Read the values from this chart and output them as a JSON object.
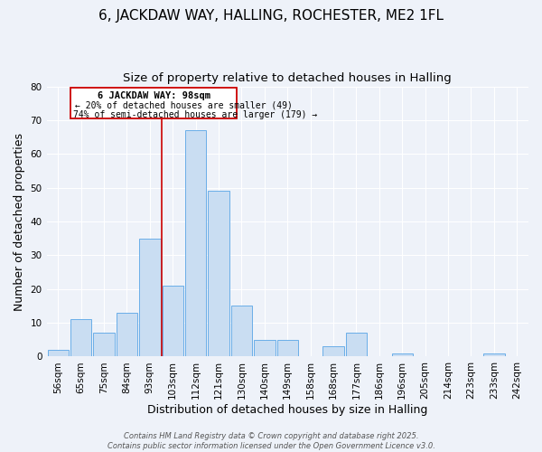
{
  "title": "6, JACKDAW WAY, HALLING, ROCHESTER, ME2 1FL",
  "subtitle": "Size of property relative to detached houses in Halling",
  "xlabel": "Distribution of detached houses by size in Halling",
  "ylabel": "Number of detached properties",
  "categories": [
    "56sqm",
    "65sqm",
    "75sqm",
    "84sqm",
    "93sqm",
    "103sqm",
    "112sqm",
    "121sqm",
    "130sqm",
    "140sqm",
    "149sqm",
    "158sqm",
    "168sqm",
    "177sqm",
    "186sqm",
    "196sqm",
    "205sqm",
    "214sqm",
    "223sqm",
    "233sqm",
    "242sqm"
  ],
  "values": [
    2,
    11,
    7,
    13,
    35,
    21,
    67,
    49,
    15,
    5,
    5,
    0,
    3,
    7,
    0,
    1,
    0,
    0,
    0,
    1,
    0
  ],
  "bar_color": "#c9ddf2",
  "bar_edge_color": "#6aaee8",
  "ylim": [
    0,
    80
  ],
  "yticks": [
    0,
    10,
    20,
    30,
    40,
    50,
    60,
    70,
    80
  ],
  "marker_line_color": "#cc0000",
  "marker_label": "6 JACKDAW WAY: 98sqm",
  "annotation_line1": "← 20% of detached houses are smaller (49)",
  "annotation_line2": "74% of semi-detached houses are larger (179) →",
  "background_color": "#eef2f9",
  "grid_color": "#ffffff",
  "footer_line1": "Contains HM Land Registry data © Crown copyright and database right 2025.",
  "footer_line2": "Contains public sector information licensed under the Open Government Licence v3.0.",
  "title_fontsize": 11,
  "subtitle_fontsize": 9.5,
  "axis_label_fontsize": 9,
  "tick_fontsize": 7.5,
  "footer_fontsize": 6
}
